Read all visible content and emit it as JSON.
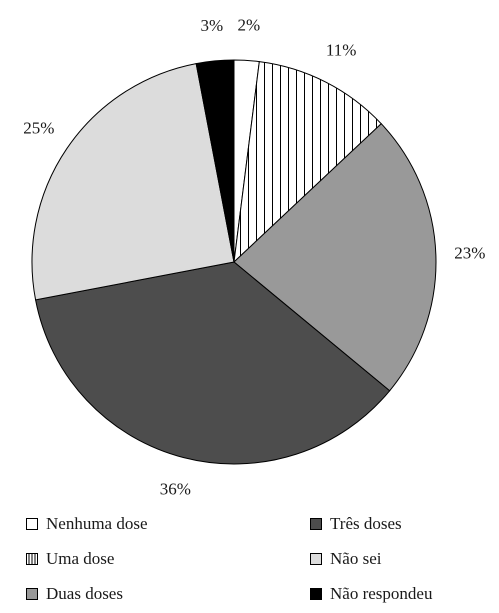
{
  "chart_data": {
    "type": "pie",
    "title": "",
    "start_angle_deg": 0,
    "direction": "clockwise",
    "slices": [
      {
        "label": "Nenhuma dose",
        "value": 2,
        "value_label": "2%",
        "fill": "#ffffff",
        "pattern": "none"
      },
      {
        "label": "Uma dose",
        "value": 11,
        "value_label": "11%",
        "fill": "#ffffff",
        "pattern": "vertical-lines"
      },
      {
        "label": "Duas doses",
        "value": 23,
        "value_label": "23%",
        "fill": "#999999",
        "pattern": "none"
      },
      {
        "label": "Três doses",
        "value": 36,
        "value_label": "36%",
        "fill": "#4d4d4d",
        "pattern": "none"
      },
      {
        "label": "Não sei",
        "value": 25,
        "value_label": "25%",
        "fill": "#dcdcdc",
        "pattern": "none"
      },
      {
        "label": "Não respondeu",
        "value": 3,
        "value_label": "3%",
        "fill": "#000000",
        "pattern": "none"
      }
    ],
    "legend": {
      "placement": "bottom",
      "columns": 2,
      "items": [
        {
          "label": "Nenhuma dose"
        },
        {
          "label": "Uma dose"
        },
        {
          "label": "Duas doses"
        },
        {
          "label": "Três doses"
        },
        {
          "label": "Não sei"
        },
        {
          "label": "Não respondeu"
        }
      ]
    }
  }
}
